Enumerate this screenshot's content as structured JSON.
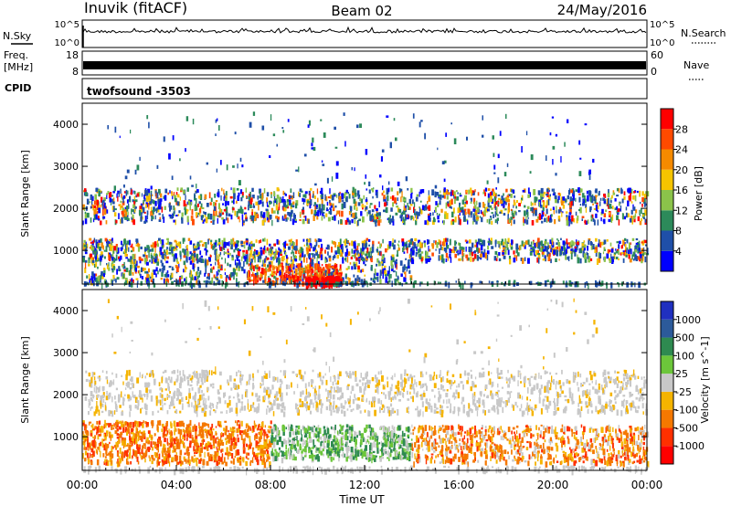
{
  "header": {
    "station": "Inuvik (fitACF)",
    "beam": "Beam 02",
    "date": "24/May/2016"
  },
  "nsky_panel": {
    "label": "N.Sky",
    "left_ticks": [
      "10^5",
      "10^0"
    ],
    "right_ticks": [
      "10^5",
      "10^0"
    ],
    "right_label": "N.Search"
  },
  "freq_panel": {
    "label_line1": "Freq.",
    "label_line2": "[MHz]",
    "left_ticks": [
      "18",
      "8"
    ],
    "right_ticks": [
      "60",
      "0"
    ],
    "right_label": "Nave"
  },
  "cpid_panel": {
    "label": "CPID",
    "program": "twofsound -3503"
  },
  "chart_data": [
    {
      "type": "heatmap",
      "name_label": "Power",
      "ylabel": "Slant Range [km]",
      "yticks": [
        "1000",
        "2000",
        "3000",
        "4000"
      ],
      "ylim": [
        200,
        4500
      ],
      "xlim_hours": [
        0,
        24
      ],
      "colorbar": {
        "label": "Power [dB]",
        "tick_labels": [
          "4",
          "8",
          "12",
          "16",
          "20",
          "24",
          "28"
        ],
        "colors": [
          "#0000ff",
          "#1f4fa8",
          "#2c8a5a",
          "#8bc34a",
          "#f5c400",
          "#f58a00",
          "#ff4a00",
          "#ff0000"
        ]
      }
    },
    {
      "type": "heatmap",
      "name_label": "Velocity",
      "ylabel": "Slant Range [km]",
      "yticks": [
        "1000",
        "2000",
        "3000",
        "4000"
      ],
      "ylim": [
        200,
        4500
      ],
      "xlim_hours": [
        0,
        24
      ],
      "colorbar": {
        "label": "Velocity [m s^-1]",
        "tick_labels": [
          "1000",
          "500",
          "100",
          "25",
          "-25",
          "-100",
          "-500",
          "-1000"
        ],
        "colors": [
          "#2030c0",
          "#2c5a9a",
          "#2e8a50",
          "#6cc63a",
          "#c8c8c8",
          "#f5b400",
          "#f57800",
          "#ff3000",
          "#ff0000"
        ]
      }
    }
  ],
  "xaxis": {
    "tick_labels": [
      "00:00",
      "04:00",
      "08:00",
      "12:00",
      "16:00",
      "20:00",
      "00:00"
    ],
    "label": "Time UT"
  }
}
